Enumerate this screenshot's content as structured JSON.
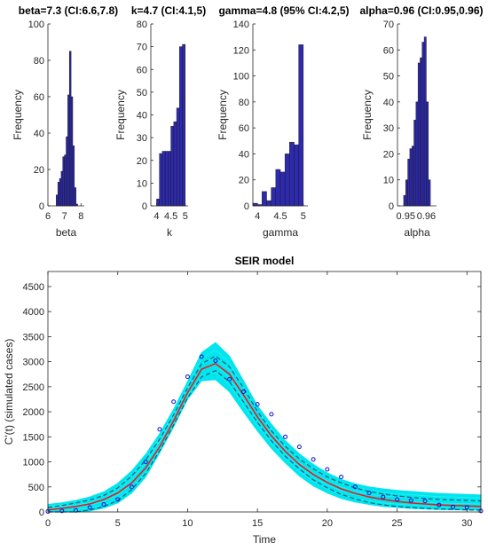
{
  "chart_data": [
    {
      "type": "bar",
      "title": "beta=7.3 (CI:6.6,7.8)",
      "xlabel": "beta",
      "ylabel": "Frequency",
      "xlim": [
        6,
        8.2
      ],
      "ylim": [
        0,
        100
      ],
      "xticks": [
        6,
        7,
        8
      ],
      "yticks": [
        0,
        20,
        40,
        60,
        80,
        100
      ],
      "bar_color": "#2e2ab0",
      "bin_edges": [
        6.5,
        6.6,
        6.7,
        6.8,
        6.9,
        7.0,
        7.1,
        7.2,
        7.3,
        7.4,
        7.5,
        7.6,
        7.7,
        7.8
      ],
      "values": [
        6,
        13,
        15,
        19,
        27,
        28,
        38,
        61,
        85,
        60,
        33,
        10,
        1
      ]
    },
    {
      "type": "bar",
      "title": "k=4.7 (CI:4.1,5)",
      "xlabel": "k",
      "ylabel": "Frequency",
      "xlim": [
        3.8,
        5.1
      ],
      "ylim": [
        0,
        80
      ],
      "xticks": [
        4,
        4.5,
        5
      ],
      "yticks": [
        0,
        10,
        20,
        30,
        40,
        50,
        60,
        70,
        80
      ],
      "bar_color": "#2e2ab0",
      "bin_edges": [
        4.0,
        4.1,
        4.2,
        4.3,
        4.4,
        4.5,
        4.6,
        4.7,
        4.8,
        4.9,
        5.0
      ],
      "values": [
        3,
        23,
        24,
        24,
        24,
        35,
        37,
        43,
        70,
        71
      ]
    },
    {
      "type": "bar",
      "title": "gamma=4.8 (95% CI:4.2,5)",
      "xlabel": "gamma",
      "ylabel": "Frequency",
      "xlim": [
        3.9,
        5.1
      ],
      "ylim": [
        0,
        140
      ],
      "xticks": [
        4,
        4.5,
        5
      ],
      "yticks": [
        0,
        20,
        40,
        60,
        80,
        100,
        120,
        140
      ],
      "bar_color": "#2e2ab0",
      "bin_edges": [
        3.9,
        4.0,
        4.1,
        4.2,
        4.3,
        4.4,
        4.5,
        4.6,
        4.7,
        4.8,
        4.9,
        5.0
      ],
      "values": [
        2,
        1,
        11,
        4,
        14,
        28,
        26,
        40,
        49,
        47,
        124
      ]
    },
    {
      "type": "bar",
      "title": "alpha=0.96 (CI:0.95,0.96)",
      "xlabel": "alpha",
      "ylabel": "Frequency",
      "xlim": [
        0.946,
        0.965
      ],
      "ylim": [
        0,
        70
      ],
      "xticks": [
        0.95,
        0.96
      ],
      "yticks": [
        0,
        10,
        20,
        30,
        40,
        50,
        60,
        70
      ],
      "bar_color": "#2e2ab0",
      "bin_edges": [
        0.949,
        0.95,
        0.951,
        0.952,
        0.953,
        0.954,
        0.955,
        0.956,
        0.957,
        0.958,
        0.959,
        0.96,
        0.961,
        0.962
      ],
      "values": [
        4,
        10,
        18,
        22,
        23,
        33,
        40,
        55,
        57,
        63,
        65,
        40,
        10,
        1
      ]
    },
    {
      "type": "line",
      "title": "SEIR model",
      "xlabel": "Time",
      "ylabel": "C'(t) (simulated cases)",
      "xlim": [
        0,
        31
      ],
      "ylim": [
        0,
        4800
      ],
      "xticks": [
        0,
        5,
        10,
        15,
        20,
        25,
        30
      ],
      "yticks": [
        0,
        500,
        1000,
        1500,
        2000,
        2500,
        3000,
        3500,
        4000,
        4500
      ],
      "band_color": "#00e5ee",
      "mean_color": "#e01e1e",
      "ci_color": "#0b5c7a",
      "obs_color": "#1010cc",
      "x": [
        0,
        1,
        2,
        3,
        4,
        5,
        6,
        7,
        8,
        9,
        10,
        11,
        12,
        13,
        14,
        15,
        16,
        17,
        18,
        19,
        20,
        21,
        22,
        23,
        24,
        25,
        26,
        27,
        28,
        29,
        30,
        31
      ],
      "series": [
        {
          "role": "band_upper",
          "values": [
            150,
            180,
            230,
            300,
            400,
            570,
            820,
            1150,
            1560,
            2050,
            2600,
            3180,
            3380,
            3110,
            2620,
            2120,
            1750,
            1420,
            1160,
            950,
            780,
            650,
            560,
            500,
            460,
            430,
            410,
            390,
            370,
            360,
            350,
            340
          ]
        },
        {
          "role": "band_lower",
          "values": [
            0,
            0,
            0,
            20,
            80,
            180,
            380,
            700,
            1180,
            1700,
            2250,
            2620,
            2640,
            2400,
            2000,
            1620,
            1270,
            980,
            720,
            520,
            380,
            270,
            200,
            150,
            110,
            90,
            70,
            60,
            50,
            45,
            40,
            35
          ]
        },
        {
          "role": "ci_upper",
          "values": [
            90,
            130,
            180,
            240,
            330,
            480,
            720,
            1040,
            1450,
            1940,
            2480,
            2960,
            3110,
            2900,
            2480,
            2010,
            1620,
            1310,
            1060,
            860,
            700,
            580,
            480,
            410,
            360,
            320,
            290,
            270,
            250,
            240,
            230,
            220
          ]
        },
        {
          "role": "ci_lower",
          "values": [
            0,
            0,
            0,
            40,
            110,
            230,
            450,
            770,
            1220,
            1740,
            2280,
            2700,
            2820,
            2600,
            2200,
            1790,
            1420,
            1110,
            860,
            640,
            480,
            350,
            260,
            190,
            140,
            110,
            90,
            70,
            60,
            50,
            40,
            35
          ]
        },
        {
          "role": "mean",
          "values": [
            40,
            70,
            110,
            160,
            250,
            380,
            580,
            880,
            1300,
            1820,
            2380,
            2850,
            2960,
            2750,
            2340,
            1900,
            1520,
            1210,
            950,
            750,
            590,
            460,
            370,
            300,
            250,
            210,
            180,
            160,
            140,
            130,
            120,
            110
          ]
        },
        {
          "role": "observed",
          "values": [
            10,
            20,
            30,
            90,
            150,
            250,
            500,
            1000,
            1650,
            2200,
            2700,
            3100,
            3020,
            2650,
            2400,
            2150,
            1950,
            1500,
            1300,
            1050,
            850,
            700,
            500,
            380,
            300,
            250,
            230,
            220,
            140,
            100,
            90,
            20
          ]
        }
      ]
    }
  ]
}
